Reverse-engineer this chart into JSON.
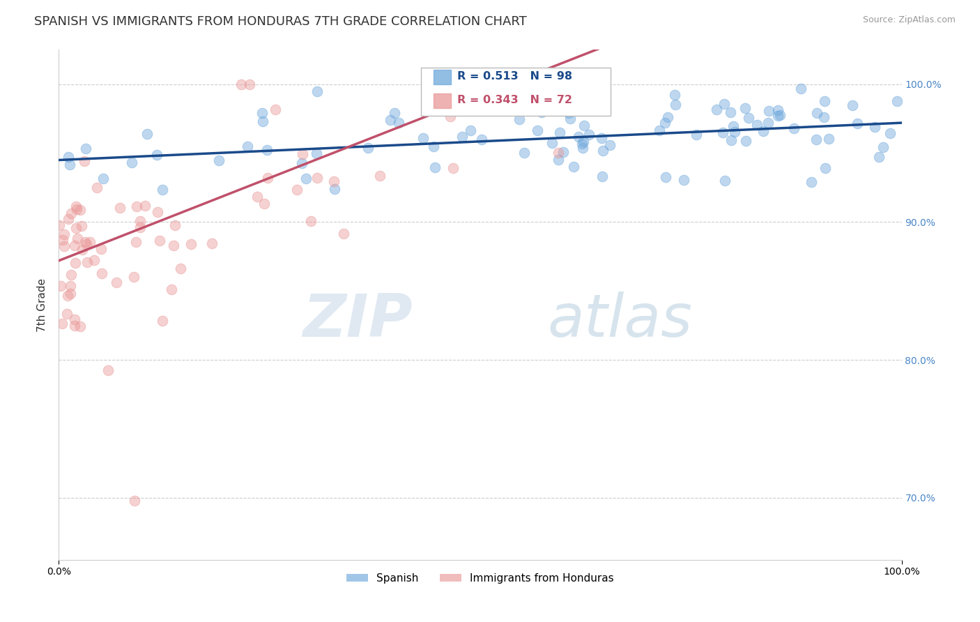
{
  "title": "SPANISH VS IMMIGRANTS FROM HONDURAS 7TH GRADE CORRELATION CHART",
  "source": "Source: ZipAtlas.com",
  "ylabel": "7th Grade",
  "xlim": [
    0.0,
    1.0
  ],
  "ylim": [
    0.655,
    1.025
  ],
  "yticks": [
    0.7,
    0.8,
    0.9,
    1.0
  ],
  "ytick_labels": [
    "70.0%",
    "80.0%",
    "90.0%",
    "100.0%"
  ],
  "blue_R": 0.513,
  "blue_N": 98,
  "pink_R": 0.343,
  "pink_N": 72,
  "blue_color": "#6fa8dc",
  "pink_color": "#ea9999",
  "blue_line_color": "#1a4a8a",
  "pink_line_color": "#c0506a",
  "legend_label_blue": "Spanish",
  "legend_label_pink": "Immigrants from Honduras",
  "watermark_zip": "ZIP",
  "watermark_atlas": "atlas",
  "background_color": "#ffffff",
  "title_fontsize": 13,
  "axis_label_fontsize": 11,
  "tick_fontsize": 10,
  "right_tick_color": "#4a86c8",
  "blue_trend_start": 0.945,
  "blue_trend_end": 0.972,
  "pink_trend_x0": 0.0,
  "pink_trend_y0": 0.872,
  "pink_trend_x1": 0.4,
  "pink_trend_y1": 0.968
}
